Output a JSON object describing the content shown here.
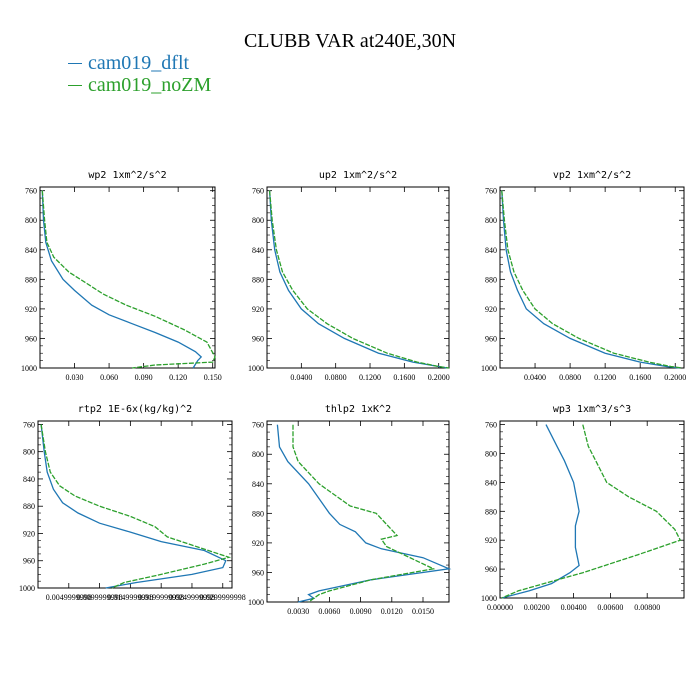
{
  "title": "CLUBB VAR at240E,30N",
  "legend": [
    {
      "name": "cam019_dflt",
      "color": "#1f77b4"
    },
    {
      "name": "cam019_noZM",
      "color": "#2ca02c"
    }
  ],
  "chart_data": [
    {
      "type": "line",
      "title": "wp2  1xm^2/s^2",
      "xlim": [
        0,
        0.152
      ],
      "xticks": [
        0.03,
        0.06,
        0.09,
        0.12,
        0.15
      ],
      "xtick_labels": [
        "0.030",
        "0.060",
        "0.090",
        "0.120",
        "0.150"
      ],
      "ylim": [
        1000,
        755
      ],
      "yticks": [
        760,
        800,
        840,
        880,
        920,
        960,
        1000
      ],
      "series": [
        {
          "name": "cam019_dflt",
          "x": [
            0.002,
            0.003,
            0.005,
            0.01,
            0.02,
            0.03,
            0.045,
            0.06,
            0.08,
            0.1,
            0.12,
            0.135,
            0.14,
            0.137,
            0.133
          ],
          "y": [
            760,
            800,
            830,
            855,
            880,
            895,
            915,
            928,
            940,
            952,
            965,
            978,
            985,
            990,
            1000
          ]
        },
        {
          "name": "cam019_noZM",
          "x": [
            0.002,
            0.004,
            0.006,
            0.012,
            0.025,
            0.04,
            0.055,
            0.075,
            0.1,
            0.125,
            0.145,
            0.152,
            0.15,
            0.1,
            0.08
          ],
          "y": [
            760,
            800,
            830,
            850,
            870,
            885,
            900,
            915,
            930,
            948,
            965,
            985,
            992,
            996,
            1000
          ]
        }
      ]
    },
    {
      "type": "line",
      "title": "up2  1xm^2/s^2",
      "xlim": [
        0,
        0.212
      ],
      "xticks": [
        0.04,
        0.08,
        0.12,
        0.16,
        0.2
      ],
      "xtick_labels": [
        "0.0400",
        "0.0800",
        "0.1200",
        "0.1600",
        "0.2000"
      ],
      "ylim": [
        1000,
        755
      ],
      "yticks": [
        760,
        800,
        840,
        880,
        920,
        960,
        1000
      ],
      "series": [
        {
          "name": "cam019_dflt",
          "x": [
            0.003,
            0.005,
            0.009,
            0.015,
            0.025,
            0.04,
            0.06,
            0.09,
            0.13,
            0.17,
            0.2,
            0.21
          ],
          "y": [
            760,
            800,
            840,
            870,
            895,
            920,
            940,
            960,
            980,
            992,
            998,
            1000
          ]
        },
        {
          "name": "cam019_noZM",
          "x": [
            0.003,
            0.006,
            0.011,
            0.018,
            0.03,
            0.047,
            0.07,
            0.1,
            0.14,
            0.175,
            0.2,
            0.212
          ],
          "y": [
            760,
            800,
            840,
            870,
            895,
            920,
            940,
            960,
            980,
            992,
            998,
            1000
          ]
        }
      ]
    },
    {
      "type": "line",
      "title": "vp2  1xm^2/s^2",
      "xlim": [
        0,
        0.21
      ],
      "xticks": [
        0.04,
        0.08,
        0.12,
        0.16,
        0.2
      ],
      "xtick_labels": [
        "0.0400",
        "0.0800",
        "0.1200",
        "0.1600",
        "0.2000"
      ],
      "ylim": [
        1000,
        755
      ],
      "yticks": [
        760,
        800,
        840,
        880,
        920,
        960,
        1000
      ],
      "series": [
        {
          "name": "cam019_dflt",
          "x": [
            0.002,
            0.004,
            0.007,
            0.012,
            0.02,
            0.03,
            0.05,
            0.08,
            0.12,
            0.16,
            0.19,
            0.205
          ],
          "y": [
            760,
            800,
            840,
            870,
            895,
            920,
            940,
            960,
            980,
            992,
            998,
            1000
          ]
        },
        {
          "name": "cam019_noZM",
          "x": [
            0.002,
            0.005,
            0.009,
            0.016,
            0.026,
            0.04,
            0.06,
            0.09,
            0.13,
            0.17,
            0.195,
            0.208
          ],
          "y": [
            760,
            800,
            840,
            870,
            895,
            920,
            940,
            960,
            980,
            992,
            998,
            1000
          ]
        }
      ]
    },
    {
      "type": "line",
      "title": "rtp2  1E-6x(kg/kg)^2",
      "xlim": [
        0,
        0.0315
      ],
      "xticks": [
        0.005,
        0.01,
        0.015,
        0.02,
        0.025,
        0.03
      ],
      "xtick_labels": [
        "0.0049999998",
        "0.0099999998",
        "0.0149999998",
        "0.0199999998",
        "0.0249999998",
        "0.0299999998"
      ],
      "ylim": [
        1000,
        755
      ],
      "yticks": [
        760,
        800,
        840,
        880,
        920,
        960,
        1000
      ],
      "series": [
        {
          "name": "cam019_dflt",
          "x": [
            0.0005,
            0.001,
            0.0015,
            0.0025,
            0.004,
            0.0065,
            0.01,
            0.015,
            0.02,
            0.027,
            0.0305,
            0.03,
            0.025,
            0.016,
            0.011
          ],
          "y": [
            760,
            800,
            830,
            855,
            875,
            890,
            905,
            918,
            932,
            945,
            960,
            970,
            980,
            992,
            1000
          ]
        },
        {
          "name": "cam019_noZM",
          "x": [
            0.0005,
            0.0012,
            0.002,
            0.0035,
            0.006,
            0.01,
            0.015,
            0.019,
            0.021,
            0.026,
            0.031,
            0.027,
            0.02,
            0.014,
            0.012
          ],
          "y": [
            760,
            800,
            830,
            850,
            865,
            880,
            895,
            910,
            925,
            940,
            955,
            965,
            980,
            992,
            1000
          ]
        }
      ]
    },
    {
      "type": "line",
      "title": "thlp2  1xK^2",
      "xlim": [
        0,
        0.0175
      ],
      "xticks": [
        0.003,
        0.006,
        0.009,
        0.012,
        0.015
      ],
      "xtick_labels": [
        "0.0030",
        "0.0060",
        "0.0090",
        "0.0120",
        "0.0150"
      ],
      "ylim": [
        1000,
        755
      ],
      "yticks": [
        760,
        800,
        840,
        880,
        920,
        960,
        1000
      ],
      "series": [
        {
          "name": "cam019_dflt",
          "x": [
            0.001,
            0.0012,
            0.002,
            0.004,
            0.006,
            0.007,
            0.0085,
            0.0095,
            0.011,
            0.015,
            0.0175,
            0.01,
            0.005,
            0.004,
            0.0045,
            0.003
          ],
          "y": [
            760,
            790,
            810,
            840,
            880,
            895,
            905,
            920,
            928,
            940,
            955,
            970,
            985,
            990,
            995,
            1000
          ]
        },
        {
          "name": "cam019_noZM",
          "x": [
            0.0025,
            0.0025,
            0.003,
            0.005,
            0.008,
            0.0105,
            0.0125,
            0.011,
            0.0115,
            0.0145,
            0.016,
            0.01,
            0.006,
            0.005,
            0.0045,
            0.004
          ],
          "y": [
            760,
            790,
            810,
            840,
            870,
            880,
            910,
            915,
            925,
            945,
            955,
            970,
            985,
            990,
            995,
            1000
          ]
        }
      ]
    },
    {
      "type": "line",
      "title": "wp3  1xm^3/s^3",
      "xlim": [
        0,
        0.01
      ],
      "xticks": [
        0,
        0.002,
        0.004,
        0.006,
        0.008
      ],
      "xtick_labels": [
        "0.00000",
        "0.00200",
        "0.00400",
        "0.00600",
        "0.00800"
      ],
      "ylim": [
        1000,
        755
      ],
      "yticks": [
        760,
        800,
        840,
        880,
        920,
        960,
        1000
      ],
      "series": [
        {
          "name": "cam019_dflt",
          "x": [
            0.0025,
            0.0031,
            0.0035,
            0.004,
            0.0043,
            0.0041,
            0.0041,
            0.0043,
            0.0038,
            0.0028,
            0.0016,
            0.0001
          ],
          "y": [
            760,
            790,
            810,
            840,
            880,
            900,
            930,
            955,
            965,
            980,
            990,
            1000
          ]
        },
        {
          "name": "cam019_noZM",
          "x": [
            0.0045,
            0.0048,
            0.0052,
            0.0058,
            0.007,
            0.0085,
            0.0095,
            0.0098,
            0.0075,
            0.0045,
            0.001,
            0.0001
          ],
          "y": [
            760,
            790,
            810,
            840,
            860,
            880,
            905,
            920,
            940,
            965,
            990,
            1000
          ]
        }
      ]
    }
  ]
}
